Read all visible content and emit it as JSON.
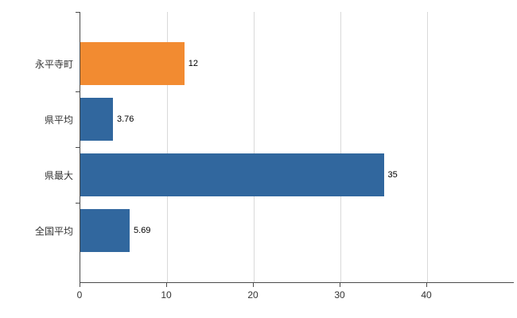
{
  "chart_data": {
    "type": "bar",
    "orientation": "horizontal",
    "title": "",
    "xlabel": "",
    "ylabel": "",
    "categories": [
      "永平寺町",
      "県平均",
      "県最大",
      "全国平均"
    ],
    "values": [
      12,
      3.76,
      35,
      5.69
    ],
    "value_labels": [
      "12",
      "3.76",
      "35",
      "5.69"
    ],
    "series_colors": [
      "#F28B31",
      "#31679E",
      "#31679E",
      "#31679E"
    ],
    "xlim": [
      0,
      50
    ],
    "xticks": [
      0,
      10,
      20,
      30,
      40
    ],
    "grid": "vertical-gridlines",
    "legend": "none",
    "axis_color": "#4A4A4A",
    "gridline_color": "#D9D9D9",
    "background": "#FFFFFF"
  }
}
